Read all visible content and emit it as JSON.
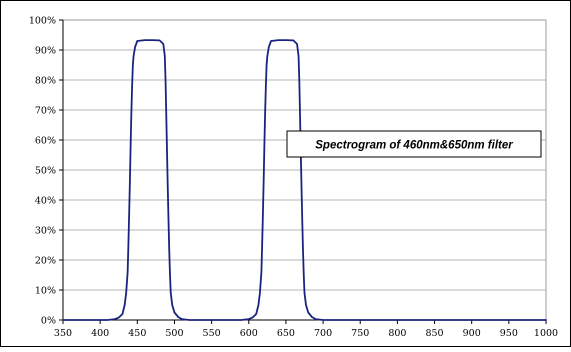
{
  "chart_data": {
    "type": "line",
    "title": "",
    "xlabel": "",
    "ylabel": "",
    "xlim": [
      350,
      1000
    ],
    "ylim": [
      0,
      100
    ],
    "x_ticks": [
      350,
      400,
      450,
      500,
      550,
      600,
      650,
      700,
      750,
      800,
      850,
      900,
      950,
      1000
    ],
    "x_tick_labels": [
      "350",
      "400",
      "450",
      "500",
      "550",
      "600",
      "650",
      "700",
      "750",
      "800",
      "850",
      "900",
      "950",
      "1000"
    ],
    "y_ticks": [
      0,
      10,
      20,
      30,
      40,
      50,
      60,
      70,
      80,
      90,
      100
    ],
    "y_tick_labels": [
      "0%",
      "10%",
      "20%",
      "30%",
      "40%",
      "50%",
      "60%",
      "70%",
      "80%",
      "90%",
      "100%"
    ],
    "grid": {
      "horizontal": true,
      "vertical": false
    },
    "legend": "none",
    "annotation": {
      "text": "Spectrogram of 460nm&650nm filter",
      "placement": "right-middle"
    },
    "colors": {
      "series": "#1a237e",
      "grid": "#9e9e9e",
      "frame": "#000000"
    },
    "series": [
      {
        "color": "#1a237e",
        "x": [
          350,
          410,
          420,
          425,
          430,
          433,
          435,
          437,
          438,
          439,
          440,
          441,
          442,
          443,
          444,
          445,
          447,
          450,
          460,
          470,
          480,
          485,
          487,
          488,
          489,
          490,
          491,
          492,
          493,
          494,
          495,
          497,
          500,
          505,
          510,
          520,
          530,
          590,
          600,
          605,
          610,
          613,
          615,
          617,
          618,
          619,
          620,
          621,
          622,
          623,
          624,
          625,
          627,
          630,
          640,
          650,
          660,
          665,
          667,
          668,
          669,
          670,
          671,
          672,
          673,
          674,
          675,
          677,
          680,
          685,
          690,
          700,
          710,
          1000
        ],
        "y": [
          0,
          0,
          0.3,
          0.8,
          2,
          5,
          9,
          16,
          25,
          35,
          46,
          58,
          69,
          78,
          85,
          88,
          91,
          93,
          93.3,
          93.3,
          93.2,
          92,
          88,
          80,
          68,
          56,
          44,
          33,
          23,
          15,
          9,
          5,
          2.5,
          1,
          0.3,
          0,
          0,
          0,
          0.3,
          0.8,
          2,
          5,
          9,
          16,
          25,
          35,
          46,
          58,
          69,
          78,
          85,
          88,
          91,
          93,
          93.3,
          93.3,
          93.2,
          92,
          88,
          80,
          68,
          56,
          44,
          33,
          23,
          15,
          9,
          5,
          2.5,
          1,
          0.3,
          0,
          0,
          0
        ]
      }
    ]
  }
}
